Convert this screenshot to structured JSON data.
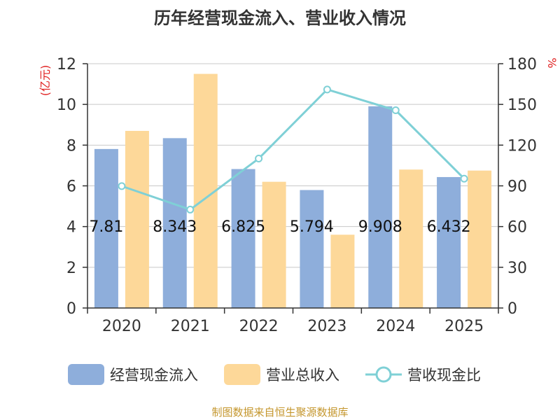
{
  "chart_data": {
    "type": "bar",
    "title": "历年经营现金流入、营业收入情况",
    "categories": [
      "2020",
      "2021",
      "2022",
      "2023",
      "2024",
      "2025"
    ],
    "left_axis": {
      "unit": "(亿元)",
      "ylim": [
        0,
        12
      ],
      "ticks": [
        "0",
        "2",
        "4",
        "6",
        "8",
        "10",
        "12"
      ]
    },
    "right_axis": {
      "unit": "%",
      "ylim": [
        0,
        180
      ],
      "ticks": [
        "0",
        "30",
        "60",
        "90",
        "120",
        "150",
        "180"
      ]
    },
    "series": [
      {
        "name": "经营现金流入",
        "type": "bar",
        "axis": "left",
        "color": "#8eaedb",
        "values": [
          7.81,
          8.343,
          6.825,
          5.794,
          9.908,
          6.432
        ],
        "labels": [
          "7.81",
          "8.343",
          "6.825",
          "5.794",
          "9.908",
          "6.432"
        ]
      },
      {
        "name": "营业总收入",
        "type": "bar",
        "axis": "left",
        "color": "#fdd899",
        "values": [
          8.7,
          11.5,
          6.2,
          3.6,
          6.8,
          6.75
        ]
      },
      {
        "name": "营收现金比",
        "type": "line",
        "axis": "right",
        "color": "#7fd0d6",
        "values": [
          89.8,
          72.5,
          110.1,
          161.0,
          145.7,
          95.3
        ]
      }
    ],
    "grid": true,
    "legend": "bottom"
  },
  "source": "制图数据来自恒生聚源数据库"
}
